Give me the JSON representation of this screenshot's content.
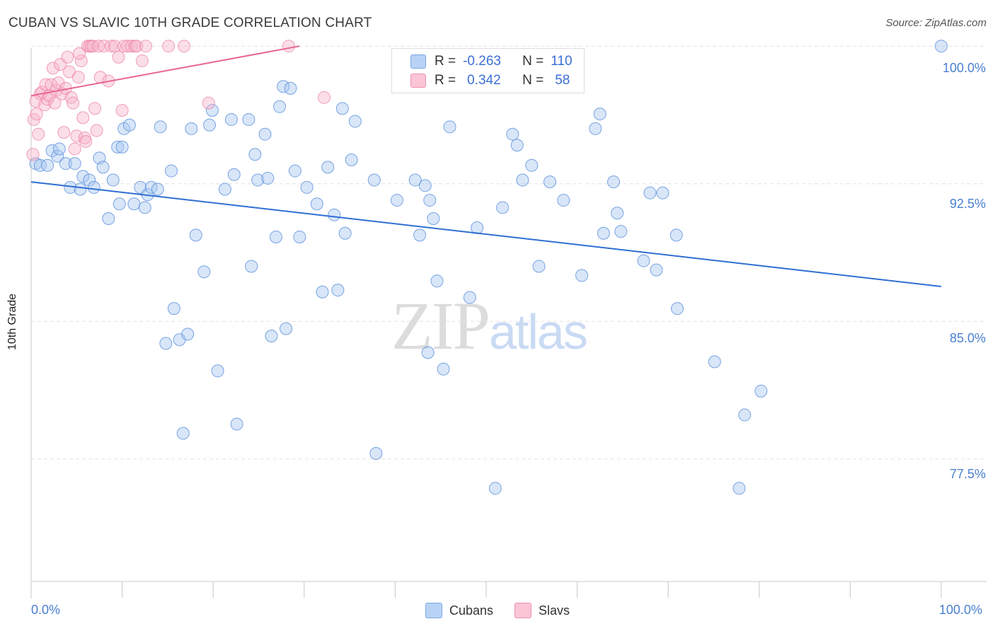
{
  "header": {
    "title": "CUBAN VS SLAVIC 10TH GRADE CORRELATION CHART",
    "source": "Source: ZipAtlas.com"
  },
  "legend_top": [
    {
      "r_label": "R =",
      "r_value": "-0.263",
      "n_label": "N =",
      "n_value": "110"
    },
    {
      "r_label": "R =",
      "r_value": "0.342",
      "n_label": "N =",
      "n_value": "58"
    }
  ],
  "legend_bottom": {
    "series1": "Cubans",
    "series2": "Slavs"
  },
  "watermark": {
    "zip": "ZIP",
    "atlas": "atlas"
  },
  "colors": {
    "cubans": "#5b8fdc",
    "slavs": "#ec7ba0",
    "axis_text": "#4a7fd0"
  },
  "chart_data": {
    "type": "scatter",
    "title": "CUBAN VS SLAVIC 10TH GRADE CORRELATION CHART",
    "xlabel": "",
    "ylabel": "10th Grade",
    "x_tick_labels": [
      "0.0%",
      "100.0%"
    ],
    "y_tick_labels": [
      "100.0%",
      "92.5%",
      "85.0%",
      "77.5%"
    ],
    "y_ticks": [
      100.0,
      92.5,
      85.0,
      77.5
    ],
    "xlim": [
      0,
      100
    ],
    "ylim": [
      70.9,
      100.2
    ],
    "grid": true,
    "series": [
      {
        "name": "Cubans",
        "r": -0.263,
        "n": 110,
        "trend": {
          "x": [
            0,
            100
          ],
          "y": [
            92.6,
            86.9
          ]
        },
        "points": [
          [
            0.5,
            93.6
          ],
          [
            1.0,
            93.5
          ],
          [
            1.8,
            93.5
          ],
          [
            2.3,
            94.3
          ],
          [
            2.9,
            94.0
          ],
          [
            3.1,
            94.4
          ],
          [
            3.8,
            93.6
          ],
          [
            4.3,
            92.3
          ],
          [
            4.8,
            93.6
          ],
          [
            5.4,
            92.2
          ],
          [
            5.7,
            92.9
          ],
          [
            6.4,
            92.7
          ],
          [
            6.9,
            92.3
          ],
          [
            7.5,
            93.9
          ],
          [
            7.9,
            93.4
          ],
          [
            8.5,
            90.6
          ],
          [
            9.0,
            92.7
          ],
          [
            9.5,
            94.5
          ],
          [
            9.7,
            91.4
          ],
          [
            10.0,
            94.5
          ],
          [
            10.2,
            95.5
          ],
          [
            10.8,
            95.7
          ],
          [
            11.3,
            91.4
          ],
          [
            12.0,
            92.3
          ],
          [
            12.5,
            91.2
          ],
          [
            12.8,
            91.9
          ],
          [
            13.2,
            92.3
          ],
          [
            13.9,
            92.2
          ],
          [
            14.2,
            95.6
          ],
          [
            14.8,
            83.8
          ],
          [
            15.4,
            93.2
          ],
          [
            15.7,
            85.7
          ],
          [
            16.3,
            84.0
          ],
          [
            16.7,
            78.9
          ],
          [
            17.2,
            84.3
          ],
          [
            17.6,
            95.5
          ],
          [
            18.1,
            89.7
          ],
          [
            19.0,
            87.7
          ],
          [
            19.6,
            95.7
          ],
          [
            19.9,
            96.5
          ],
          [
            20.5,
            82.3
          ],
          [
            21.3,
            92.2
          ],
          [
            22.0,
            96.0
          ],
          [
            22.3,
            93.0
          ],
          [
            22.6,
            79.4
          ],
          [
            23.9,
            96.0
          ],
          [
            24.2,
            88.0
          ],
          [
            24.6,
            94.1
          ],
          [
            24.9,
            92.7
          ],
          [
            25.7,
            95.2
          ],
          [
            26.0,
            92.8
          ],
          [
            26.4,
            84.2
          ],
          [
            26.9,
            89.6
          ],
          [
            27.3,
            96.7
          ],
          [
            27.7,
            97.8
          ],
          [
            28.0,
            84.6
          ],
          [
            28.5,
            97.7
          ],
          [
            29.0,
            93.2
          ],
          [
            29.5,
            89.6
          ],
          [
            30.3,
            92.3
          ],
          [
            31.4,
            91.4
          ],
          [
            32.0,
            86.6
          ],
          [
            32.6,
            93.4
          ],
          [
            33.3,
            90.8
          ],
          [
            33.7,
            86.7
          ],
          [
            34.2,
            96.6
          ],
          [
            34.5,
            89.8
          ],
          [
            35.2,
            93.8
          ],
          [
            35.6,
            95.9
          ],
          [
            37.7,
            92.7
          ],
          [
            37.9,
            77.8
          ],
          [
            40.2,
            91.6
          ],
          [
            42.2,
            92.7
          ],
          [
            42.7,
            89.7
          ],
          [
            43.3,
            92.4
          ],
          [
            43.6,
            83.3
          ],
          [
            43.8,
            91.6
          ],
          [
            44.2,
            90.6
          ],
          [
            44.6,
            87.2
          ],
          [
            45.3,
            82.4
          ],
          [
            46.0,
            95.6
          ],
          [
            48.2,
            86.3
          ],
          [
            49.0,
            90.1
          ],
          [
            51.0,
            75.9
          ],
          [
            51.8,
            91.2
          ],
          [
            52.9,
            95.2
          ],
          [
            53.4,
            94.6
          ],
          [
            54.0,
            92.7
          ],
          [
            55.0,
            93.5
          ],
          [
            55.8,
            88.0
          ],
          [
            57.0,
            92.6
          ],
          [
            58.5,
            91.6
          ],
          [
            60.5,
            87.5
          ],
          [
            62.0,
            95.5
          ],
          [
            62.5,
            96.3
          ],
          [
            62.9,
            89.8
          ],
          [
            64.0,
            92.6
          ],
          [
            64.4,
            90.9
          ],
          [
            64.8,
            89.9
          ],
          [
            67.3,
            88.3
          ],
          [
            68.0,
            92.0
          ],
          [
            68.7,
            87.8
          ],
          [
            69.4,
            92.0
          ],
          [
            70.9,
            89.7
          ],
          [
            71.0,
            85.7
          ],
          [
            75.1,
            82.8
          ],
          [
            77.8,
            75.9
          ],
          [
            78.4,
            79.9
          ],
          [
            80.2,
            81.2
          ],
          [
            100.0,
            100.0
          ]
        ]
      },
      {
        "name": "Slavs",
        "r": 0.342,
        "n": 58,
        "trend": {
          "x": [
            0,
            29.5
          ],
          "y": [
            97.3,
            100.0
          ]
        },
        "points": [
          [
            0.2,
            94.1
          ],
          [
            0.3,
            96.0
          ],
          [
            0.5,
            97.0
          ],
          [
            0.6,
            96.3
          ],
          [
            0.8,
            95.2
          ],
          [
            1.0,
            97.4
          ],
          [
            1.2,
            97.5
          ],
          [
            1.5,
            96.8
          ],
          [
            1.6,
            97.9
          ],
          [
            1.8,
            97.1
          ],
          [
            2.0,
            97.3
          ],
          [
            2.2,
            97.9
          ],
          [
            2.4,
            98.8
          ],
          [
            2.6,
            96.9
          ],
          [
            2.8,
            97.6
          ],
          [
            3.0,
            98.0
          ],
          [
            3.2,
            99.0
          ],
          [
            3.4,
            97.4
          ],
          [
            3.6,
            95.3
          ],
          [
            3.8,
            97.7
          ],
          [
            4.0,
            99.4
          ],
          [
            4.2,
            98.6
          ],
          [
            4.4,
            97.2
          ],
          [
            4.6,
            96.9
          ],
          [
            4.8,
            94.4
          ],
          [
            5.0,
            95.1
          ],
          [
            5.2,
            98.3
          ],
          [
            5.5,
            99.2
          ],
          [
            5.7,
            96.1
          ],
          [
            5.9,
            95.0
          ],
          [
            6.0,
            94.8
          ],
          [
            6.2,
            100.0
          ],
          [
            6.4,
            100.0
          ],
          [
            6.6,
            100.0
          ],
          [
            6.8,
            100.0
          ],
          [
            7.0,
            96.6
          ],
          [
            7.2,
            95.4
          ],
          [
            7.4,
            100.0
          ],
          [
            7.6,
            98.3
          ],
          [
            8.0,
            100.0
          ],
          [
            8.5,
            98.1
          ],
          [
            8.8,
            100.0
          ],
          [
            9.2,
            100.0
          ],
          [
            9.6,
            99.4
          ],
          [
            10.0,
            96.5
          ],
          [
            10.2,
            100.0
          ],
          [
            10.6,
            100.0
          ],
          [
            11.0,
            100.0
          ],
          [
            11.4,
            100.0
          ],
          [
            11.6,
            100.0
          ],
          [
            12.2,
            99.2
          ],
          [
            12.6,
            100.0
          ],
          [
            15.1,
            100.0
          ],
          [
            16.8,
            100.0
          ],
          [
            19.5,
            96.9
          ],
          [
            28.3,
            100.0
          ],
          [
            32.2,
            97.2
          ],
          [
            5.3,
            99.6
          ]
        ]
      }
    ]
  }
}
